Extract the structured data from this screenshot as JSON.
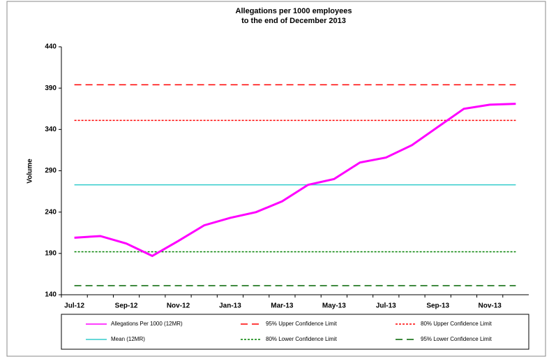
{
  "chart_data": {
    "type": "line",
    "title": "Allegations per 1000 employees",
    "subtitle": "to the end of December 2013",
    "y_label": "Volume",
    "categories": [
      "Jul-12",
      null,
      "Sep-12",
      null,
      "Nov-12",
      null,
      "Jan-13",
      null,
      "Mar-13",
      null,
      "May-13",
      null,
      "Jul-13",
      null,
      "Sep-13",
      null,
      "Nov-13",
      null
    ],
    "ylim": [
      140,
      440
    ],
    "yticks": [
      140,
      190,
      240,
      290,
      340,
      390,
      440
    ],
    "grid": false,
    "legend": "bottom",
    "series": [
      {
        "name": "Allegations Per 1000 (12MR)",
        "color": "#ff00ff",
        "width": 3,
        "dash": "none",
        "values": [
          209,
          211,
          202,
          187,
          205,
          224,
          233,
          240,
          253,
          273,
          280,
          300,
          306,
          321,
          343,
          365,
          370,
          371
        ]
      },
      {
        "name": "95% Upper Confidence Limit",
        "color": "#ff0000",
        "width": 1.5,
        "dash": "10 6",
        "values": [
          394,
          394,
          394,
          394,
          394,
          394,
          394,
          394,
          394,
          394,
          394,
          394,
          394,
          394,
          394,
          394,
          394,
          394
        ]
      },
      {
        "name": "80% Upper Confidence Limit",
        "color": "#ff0000",
        "width": 1.5,
        "dash": "3 2",
        "values": [
          351,
          351,
          351,
          351,
          351,
          351,
          351,
          351,
          351,
          351,
          351,
          351,
          351,
          351,
          351,
          351,
          351,
          351
        ]
      },
      {
        "name": "Mean (12MR)",
        "color": "#33cccc",
        "width": 1.5,
        "dash": "none",
        "values": [
          273,
          273,
          273,
          273,
          273,
          273,
          273,
          273,
          273,
          273,
          273,
          273,
          273,
          273,
          273,
          273,
          273,
          273
        ]
      },
      {
        "name": "80% Lower Confidence Limit",
        "color": "#008000",
        "width": 1.5,
        "dash": "3 2",
        "values": [
          192,
          192,
          192,
          192,
          192,
          192,
          192,
          192,
          192,
          192,
          192,
          192,
          192,
          192,
          192,
          192,
          192,
          192
        ]
      },
      {
        "name": "95% Lower Confidence Limit",
        "color": "#006400",
        "width": 1.5,
        "dash": "10 6",
        "values": [
          151,
          151,
          151,
          151,
          151,
          151,
          151,
          151,
          151,
          151,
          151,
          151,
          151,
          151,
          151,
          151,
          151,
          151
        ]
      }
    ]
  }
}
